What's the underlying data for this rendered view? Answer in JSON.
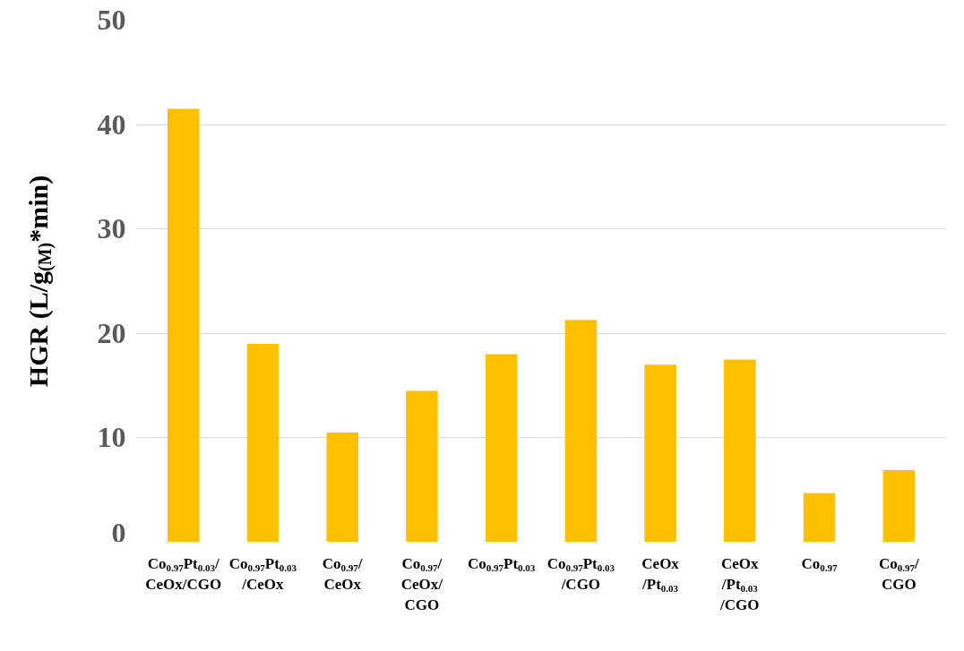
{
  "chart_data": {
    "type": "bar",
    "ylabel": "HGR (L/g$_{(M)}$*min)",
    "categories": [
      "Co$_{0.97}$Pt$_{0.03}$/\nCeOx/CGO",
      "Co$_{0.97}$Pt$_{0.03}$\n/CeOx",
      "Co$_{0.97}$/\nCeOx",
      "Co$_{0.97}$/\nCeOx/\nCGO",
      "Co$_{0.97}$Pt$_{0.03}$",
      "Co$_{0.97}$Pt$_{0.03}$\n/CGO",
      "CeOx\n/Pt$_{0.03}$",
      "CeOx\n/Pt$_{0.03}$\n/CGO",
      "Co$_{0.97}$",
      "Co$_{0.97}$/\nCGO"
    ],
    "values": [
      41.5,
      19.0,
      10.5,
      14.5,
      18.0,
      21.3,
      17.0,
      17.5,
      4.7,
      6.9
    ],
    "color": "#ffc000",
    "ylim": [
      0,
      50
    ],
    "yticks": [
      0,
      10,
      20,
      30,
      40,
      50
    ],
    "grid": "y"
  }
}
